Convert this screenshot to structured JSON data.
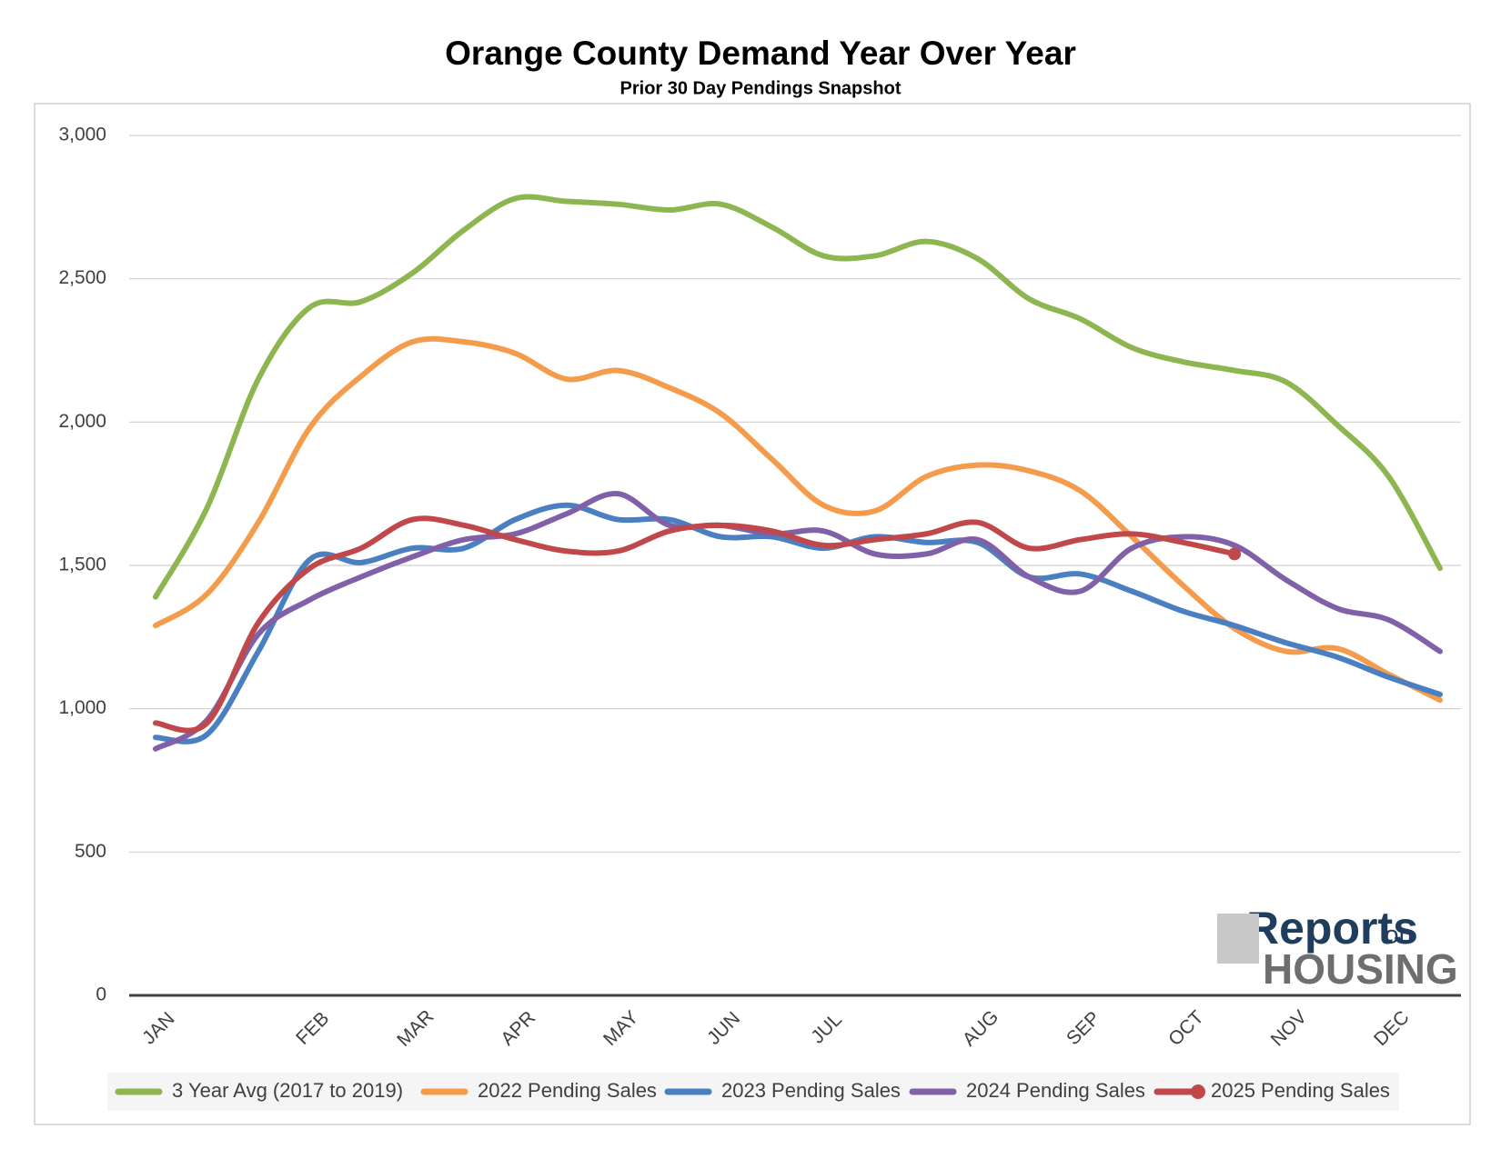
{
  "chart_data": {
    "type": "line",
    "title": "Orange County Demand Year Over Year",
    "subtitle": "Prior 30 Day Pendings Snapshot",
    "categories": [
      "JAN",
      null,
      null,
      "FEB",
      null,
      "MAR",
      null,
      "APR",
      null,
      "MAY",
      null,
      "JUN",
      null,
      "JUL",
      null,
      null,
      "AUG",
      null,
      "SEP",
      null,
      "OCT",
      null,
      "NOV",
      null,
      "DEC",
      null
    ],
    "series": [
      {
        "name": "3 Year Avg (2017 to 2019)",
        "color": "#8db550",
        "values": [
          1390,
          1700,
          2150,
          2400,
          2420,
          2520,
          2670,
          2780,
          2770,
          2760,
          2740,
          2760,
          2680,
          2580,
          2580,
          2630,
          2570,
          2430,
          2360,
          2260,
          2210,
          2180,
          2140,
          1990,
          1810,
          1490
        ]
      },
      {
        "name": "2022 Pending Sales",
        "color": "#f59b4c",
        "values": [
          1290,
          1400,
          1650,
          1980,
          2160,
          2280,
          2280,
          2240,
          2150,
          2180,
          2120,
          2030,
          1870,
          1710,
          1690,
          1810,
          1850,
          1830,
          1760,
          1600,
          1430,
          1280,
          1200,
          1210,
          1120,
          1030
        ]
      },
      {
        "name": "2023 Pending Sales",
        "color": "#4a7fc1",
        "values": [
          900,
          910,
          1200,
          1520,
          1510,
          1560,
          1560,
          1660,
          1710,
          1660,
          1660,
          1600,
          1600,
          1560,
          1600,
          1580,
          1580,
          1460,
          1470,
          1410,
          1340,
          1290,
          1230,
          1180,
          1110,
          1050
        ]
      },
      {
        "name": "2024 Pending Sales",
        "color": "#8061a8",
        "values": [
          860,
          960,
          1260,
          1380,
          1460,
          1530,
          1590,
          1610,
          1680,
          1750,
          1640,
          1640,
          1610,
          1620,
          1540,
          1540,
          1590,
          1460,
          1410,
          1560,
          1600,
          1570,
          1450,
          1350,
          1310,
          1200
        ]
      },
      {
        "name": "2025 Pending Sales",
        "color": "#c0474a",
        "marker": "end",
        "values": [
          950,
          950,
          1300,
          1490,
          1560,
          1660,
          1640,
          1590,
          1550,
          1550,
          1620,
          1640,
          1620,
          1570,
          1590,
          1610,
          1650,
          1560,
          1590,
          1610,
          1580,
          1540,
          null,
          null,
          null,
          null
        ]
      }
    ],
    "ylim": [
      0,
      3000
    ],
    "yticks": [
      0,
      500,
      {
        "value": 1000,
        "label": "1,000"
      },
      {
        "value": 1500,
        "label": "1,500"
      },
      {
        "value": 2000,
        "label": "2,000"
      },
      {
        "value": 2500,
        "label": "2,500"
      },
      {
        "value": 3000,
        "label": "3,000"
      }
    ],
    "grid": true,
    "legend": "bottom"
  },
  "logo": {
    "word1": "Reports",
    "word2": "on",
    "word3": "HOUSING"
  }
}
